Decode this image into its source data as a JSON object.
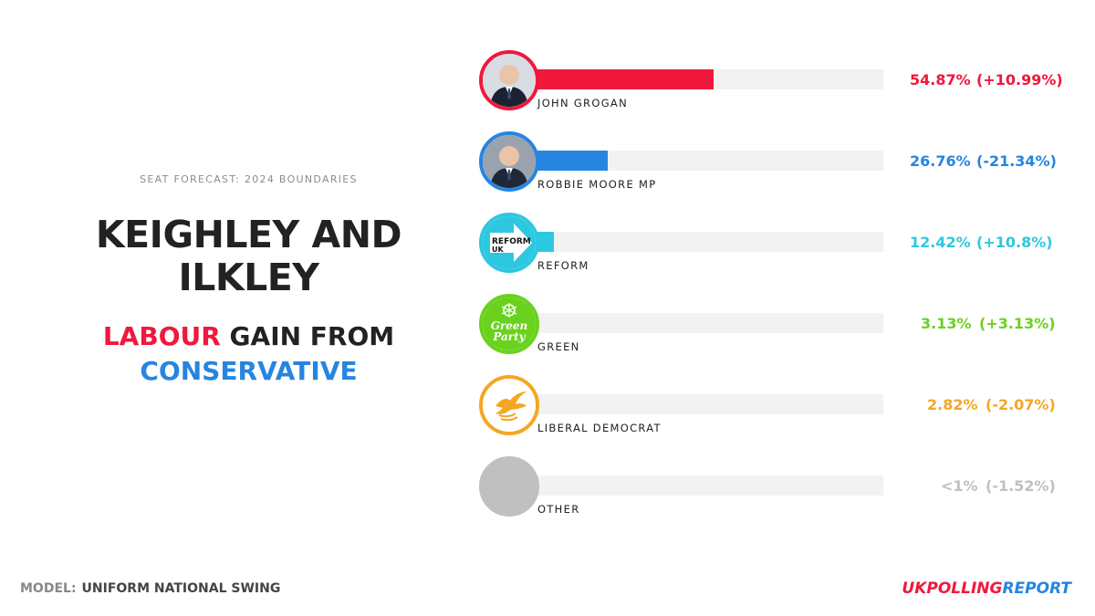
{
  "header": {
    "forecast_label": "SEAT FORECAST: 2024 BOUNDARIES",
    "seat_name_line1": "KEIGHLEY AND",
    "seat_name_line2": "ILKLEY",
    "result_winner": "LABOUR",
    "result_middle": " GAIN FROM",
    "result_loser": "CONSERVATIVE"
  },
  "colors": {
    "labour": "#f0183c",
    "conservative": "#2685e0",
    "reform": "#2dc8e0",
    "green": "#6ad21e",
    "libdem": "#f5a623",
    "other": "#c0c0c0",
    "heading": "#222222"
  },
  "footer": {
    "model_label": "MODEL:",
    "model_value": "UNIFORM NATIONAL SWING",
    "brand_part1": "UKPOLLING",
    "brand_part2": "REPORT"
  },
  "chart_data": {
    "type": "bar",
    "orientation": "horizontal",
    "xlim": [
      0,
      100
    ],
    "categories": [
      "JOHN GROGAN",
      "ROBBIE MOORE MP",
      "REFORM",
      "GREEN",
      "LIBERAL DEMOCRAT",
      "OTHER"
    ],
    "values": [
      54.87,
      26.76,
      12.42,
      3.13,
      2.82,
      0.5
    ],
    "value_labels": [
      "54.87%",
      "26.76%",
      "12.42%",
      "3.13%",
      "2.82%",
      "<1%"
    ],
    "change_labels": [
      "(+10.99%)",
      "(-21.34%)",
      "(+10.8%)",
      "(+3.13%)",
      "(-2.07%)",
      "(-1.52%)"
    ],
    "colors": [
      "#f0183c",
      "#2685e0",
      "#2dc8e0",
      "#6ad21e",
      "#f5a623",
      "#c0c0c0"
    ],
    "icons": [
      "candidate-photo",
      "candidate-photo",
      "reform-uk-logo",
      "green-party-logo",
      "lib-dem-bird-logo",
      "blank-circle"
    ]
  },
  "logos": {
    "reform_text_1": "REFORM",
    "reform_text_2": "UK",
    "green_text_1": "Green",
    "green_text_2": "Party"
  }
}
